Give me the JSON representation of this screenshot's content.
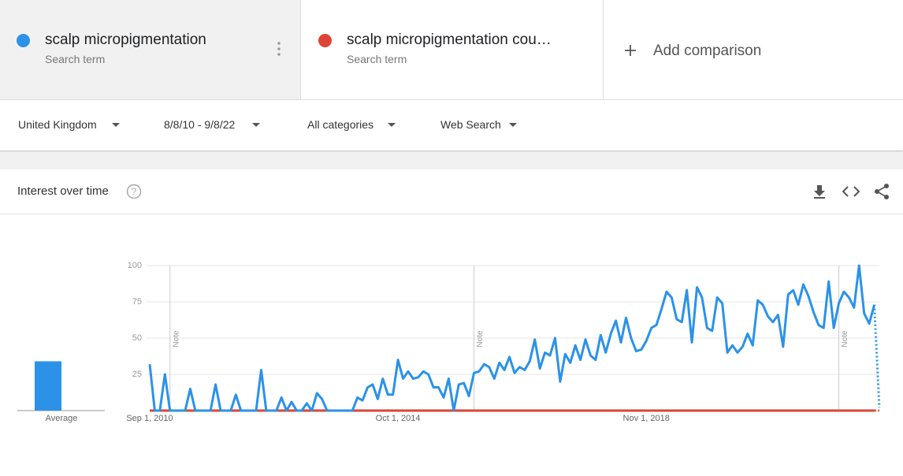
{
  "term_labels": [
    "Search term",
    "Search term"
  ],
  "add_comparison": "Add comparison",
  "filters": [
    "United Kingdom",
    "8/8/10 - 9/8/22",
    "All categories",
    "Web Search"
  ],
  "section_title": "Interest over time",
  "average_label": "Average",
  "chart_data": {
    "type": "line",
    "ylim": [
      0,
      100
    ],
    "yticks": [
      25,
      50,
      75,
      100
    ],
    "xlim": [
      0,
      144
    ],
    "xticks": [
      {
        "value": 0,
        "label": "Sep 1, 2010"
      },
      {
        "value": 49,
        "label": "Oct 1, 2014"
      },
      {
        "value": 98,
        "label": "Nov 1, 2018"
      }
    ],
    "annotations": [
      {
        "x": 4,
        "label": "Note"
      },
      {
        "x": 64,
        "label": "Note"
      },
      {
        "x": 136,
        "label": "Note"
      }
    ],
    "grid": true,
    "dotted_last_segment": true,
    "series": [
      {
        "name": "scalp micropigmentation",
        "color": "#2b92e8",
        "average": 34,
        "values": [
          32,
          0,
          0,
          25,
          0,
          0,
          0,
          0,
          15,
          0,
          0,
          0,
          0,
          18,
          0,
          0,
          0,
          11,
          0,
          0,
          0,
          0,
          28,
          0,
          0,
          0,
          9,
          0,
          6,
          0,
          0,
          5,
          0,
          12,
          8,
          0,
          0,
          0,
          0,
          0,
          0,
          9,
          7,
          16,
          18,
          8,
          22,
          11,
          11,
          35,
          22,
          27,
          22,
          23,
          27,
          25,
          16,
          16,
          9,
          22,
          0,
          18,
          19,
          10,
          26,
          27,
          32,
          30,
          22,
          33,
          28,
          37,
          26,
          30,
          28,
          34,
          49,
          29,
          40,
          38,
          50,
          20,
          39,
          33,
          45,
          35,
          49,
          38,
          35,
          52,
          40,
          53,
          62,
          47,
          64,
          50,
          41,
          42,
          48,
          57,
          59,
          70,
          82,
          78,
          63,
          61,
          83,
          47,
          85,
          78,
          57,
          55,
          78,
          74,
          40,
          45,
          40,
          44,
          53,
          45,
          76,
          73,
          65,
          61,
          66,
          44,
          80,
          83,
          73,
          87,
          79,
          68,
          59,
          57,
          89,
          57,
          74,
          82,
          78,
          71,
          100,
          67,
          60,
          73,
          2
        ]
      },
      {
        "name": "scalp micropigmentation cou…",
        "color": "#db4437",
        "average": 0,
        "values": [
          0,
          0,
          0,
          0,
          0,
          0,
          0,
          0,
          0,
          0,
          0,
          0,
          0,
          0,
          0,
          0,
          0,
          0,
          0,
          0,
          0,
          0,
          0,
          0,
          0,
          0,
          0,
          0,
          0,
          0,
          0,
          0,
          0,
          0,
          0,
          0,
          0,
          0,
          0,
          0,
          0,
          0,
          0,
          0,
          0,
          0,
          0,
          0,
          0,
          0,
          0,
          0,
          0,
          0,
          0,
          0,
          0,
          0,
          0,
          0,
          0,
          0,
          0,
          0,
          0,
          0,
          0,
          0,
          0,
          0,
          0,
          0,
          0,
          0,
          0,
          0,
          0,
          0,
          0,
          0,
          0,
          0,
          0,
          0,
          0,
          0,
          0,
          0,
          0,
          0,
          0,
          0,
          0,
          0,
          0,
          0,
          0,
          0,
          0,
          0,
          0,
          0,
          0,
          0,
          0,
          0,
          0,
          0,
          0,
          0,
          0,
          0,
          0,
          0,
          0,
          0,
          0,
          0,
          0,
          0,
          0,
          0,
          0,
          0,
          0,
          0,
          0,
          0,
          0,
          0,
          0,
          0,
          0,
          0,
          0,
          0,
          0,
          0,
          0,
          0,
          0,
          0,
          0,
          0,
          0
        ]
      }
    ]
  }
}
